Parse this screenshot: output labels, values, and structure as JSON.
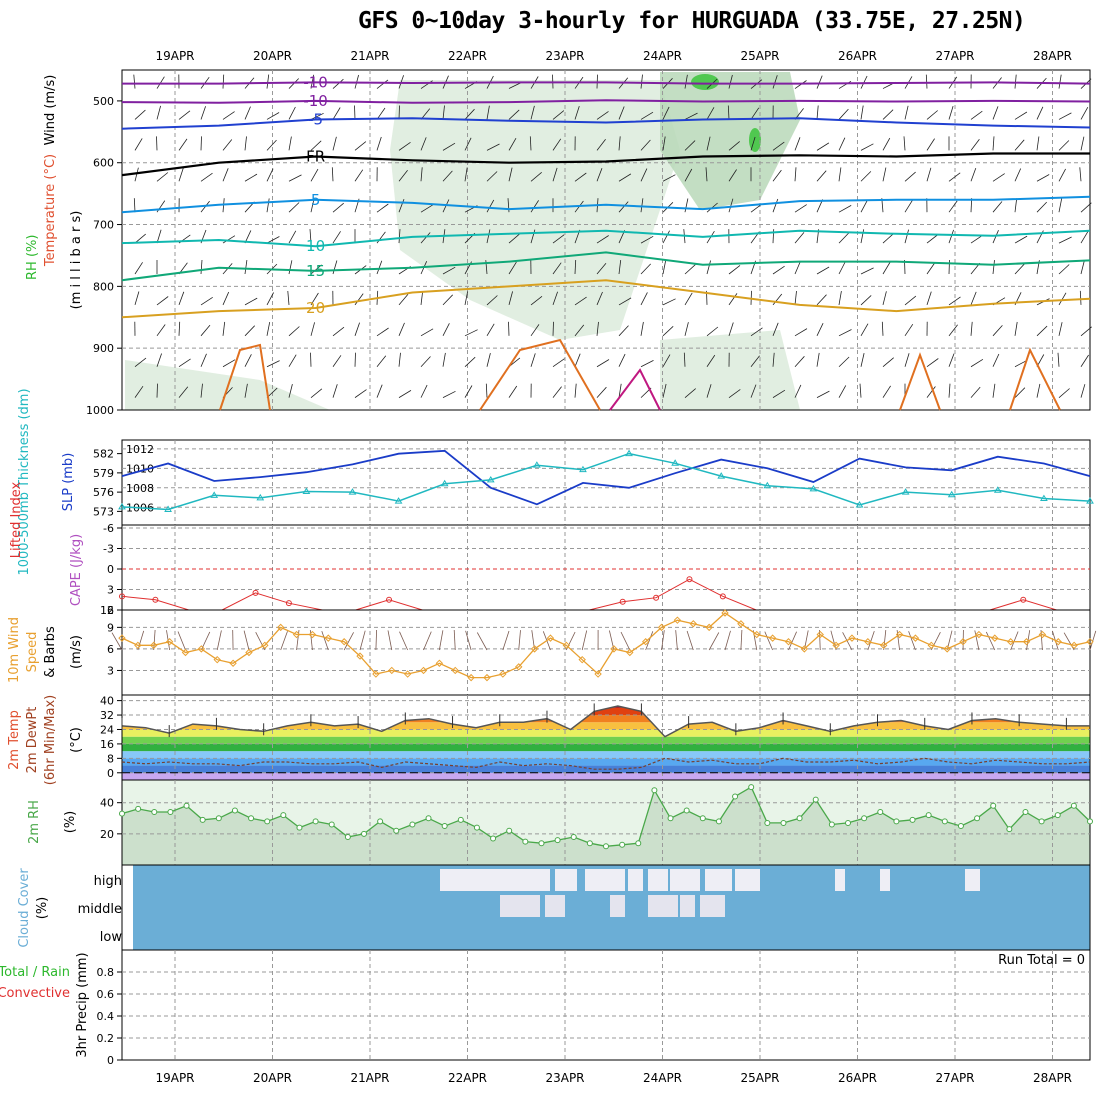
{
  "chart_data": {
    "type": "line",
    "title": "GFS 0~10day 3-hourly for HURGUADA (33.75E, 27.25N)",
    "dates": [
      "19APR",
      "20APR",
      "21APR",
      "22APR",
      "23APR",
      "24APR",
      "25APR",
      "26APR",
      "27APR",
      "28APR"
    ],
    "colors": {
      "rh": "#2db82d",
      "temp": "#e05030",
      "wind": "#222222",
      "slp": "#1a3cc8",
      "thickness": "#20b8c0",
      "cape": "#b050c0",
      "li": "#e03030",
      "wind10": "#e8a030",
      "clouds": "#6baed6",
      "cloud_fill": "#eeeef5",
      "rh2m": "#4aa84a"
    },
    "upper_air": {
      "ylabel_wind": "Wind (m/s)",
      "ylabel_temp": "Temperature (°C)",
      "ylabel_rh": "RH (%)",
      "ylabel_p": "(m i l l i b a r s)",
      "yticks": [
        500,
        600,
        700,
        800,
        900,
        1000
      ],
      "ylim": [
        450,
        1000
      ],
      "contours": [
        {
          "label": "-10",
          "color": "#8020a0",
          "p": [
            472,
            472,
            470,
            471,
            470,
            470,
            472,
            472,
            471,
            470,
            472
          ]
        },
        {
          "label": "-10",
          "color": "#8020a0",
          "p": [
            502,
            503,
            500,
            503,
            502,
            499,
            501,
            500,
            501,
            500,
            501
          ]
        },
        {
          "label": "-5",
          "color": "#2040d0",
          "p": [
            545,
            540,
            530,
            528,
            532,
            535,
            530,
            528,
            535,
            540,
            543
          ]
        },
        {
          "label": "FR",
          "color": "#000000",
          "p": [
            620,
            600,
            590,
            596,
            600,
            598,
            590,
            588,
            590,
            585,
            585
          ]
        },
        {
          "label": "5",
          "color": "#1090e0",
          "p": [
            680,
            668,
            660,
            665,
            675,
            668,
            675,
            662,
            660,
            660,
            655
          ]
        },
        {
          "label": "10",
          "color": "#10b8b0",
          "p": [
            730,
            725,
            735,
            720,
            715,
            710,
            720,
            710,
            715,
            718,
            710
          ]
        },
        {
          "label": "15",
          "color": "#10a878",
          "p": [
            790,
            770,
            775,
            770,
            760,
            745,
            765,
            760,
            760,
            765,
            758
          ]
        },
        {
          "label": "20",
          "color": "#d8a020",
          "p": [
            850,
            840,
            835,
            810,
            800,
            790,
            810,
            830,
            840,
            828,
            820
          ]
        }
      ],
      "rh_label": "RH (%)"
    },
    "slp_thickness": {
      "ylabel_thickness": "1000-500mb Thickness (dm)",
      "ylabel_slp": "SLP (mb)",
      "thickness_ticks": [
        573,
        576,
        579,
        582
      ],
      "slp_ticks": [
        1006,
        1008,
        1010,
        1012
      ],
      "slp": [
        1009.2,
        1010.5,
        1008.7,
        1009.1,
        1009.6,
        1010.4,
        1011.5,
        1011.8,
        1008.0,
        1006.3,
        1008.5,
        1008.0,
        1009.5,
        1010.9,
        1010.0,
        1008.6,
        1011.0,
        1010.1,
        1009.8,
        1011.2,
        1010.5,
        1009.2
      ],
      "thickness": [
        573.7,
        573.3,
        575.5,
        575.1,
        576.1,
        576.0,
        574.6,
        577.3,
        577.9,
        580.2,
        579.5,
        582.0,
        580.5,
        578.5,
        577.0,
        576.5,
        574.0,
        576.0,
        575.6,
        576.3,
        575.0,
        574.6
      ]
    },
    "cape_li": {
      "ylabel_li": "Lifted Index",
      "ylabel_cape": "CAPE (J/kg)",
      "li_ticks": [
        -6,
        -3,
        0,
        3,
        6
      ],
      "cape_ticks": [
        12
      ],
      "li": [
        4.0,
        4.5,
        6,
        6,
        3.5,
        5,
        6,
        6,
        4.5,
        6,
        6,
        6,
        6,
        6,
        6,
        4.8,
        4.2,
        1.5,
        4,
        6,
        6,
        6,
        6,
        6,
        6,
        6,
        6,
        4.5,
        6,
        6
      ],
      "zero_line": 0
    },
    "wind10m": {
      "ylabel": "10m Wind Speed & Barbs (m/s)",
      "ylabel_a": "10m Wind",
      "ylabel_b": "Speed",
      "ylabel_c": "& Barbs",
      "ylabel_unit": "(m/s)",
      "ticks": [
        3,
        6,
        9
      ],
      "speed": [
        7.5,
        6.5,
        6.5,
        7,
        5.5,
        6,
        4.5,
        4,
        5.5,
        6.5,
        9,
        8,
        8,
        7.5,
        7,
        5,
        2.5,
        3,
        2.5,
        3,
        4,
        3,
        2,
        2,
        2.5,
        3.5,
        6,
        7.5,
        6.5,
        4.5,
        2.5,
        6,
        5.5,
        7,
        9,
        10,
        9.5,
        9,
        11,
        9.5,
        8,
        7.5,
        7,
        6,
        8,
        6.5,
        7.5,
        7,
        6.5,
        8,
        7.5,
        6.5,
        6,
        7,
        8,
        7.5,
        7,
        7,
        8,
        7,
        6.5,
        7
      ]
    },
    "temp2m": {
      "ylabel": "2m Temp",
      "ylabel_b": "2m DewPt",
      "ylabel_c": "(6hr Min/Max)",
      "ylabel_unit": "(°C)",
      "ticks": [
        0,
        8,
        16,
        24,
        32,
        40
      ],
      "temp": [
        26,
        25,
        22,
        27,
        26,
        24,
        23,
        26,
        28,
        26,
        27,
        23,
        29,
        30,
        27,
        25,
        28,
        28,
        30,
        24,
        34,
        37,
        34,
        20,
        27,
        28,
        23,
        25,
        29,
        26,
        23,
        26,
        28,
        29,
        26,
        24,
        29,
        30,
        28,
        27,
        26,
        26
      ],
      "dewpt": [
        6,
        5,
        6,
        5,
        5,
        4,
        6,
        6,
        5,
        5,
        6,
        3,
        6,
        5,
        4,
        3,
        6,
        4,
        5,
        4,
        2,
        2,
        3,
        8,
        6,
        7,
        5,
        5,
        8,
        6,
        6,
        7,
        5,
        6,
        8,
        6,
        5,
        7,
        6,
        5,
        5,
        6
      ]
    },
    "rh2m": {
      "ylabel": "2m RH",
      "ylabel_unit": "(%)",
      "ticks": [
        20,
        40
      ],
      "rh": [
        33,
        36,
        34,
        34,
        38,
        29,
        30,
        35,
        30,
        28,
        32,
        24,
        28,
        26,
        18,
        20,
        28,
        22,
        26,
        30,
        25,
        29,
        24,
        17,
        22,
        15,
        14,
        16,
        18,
        14,
        12,
        13,
        14,
        48,
        30,
        35,
        30,
        28,
        44,
        50,
        27,
        27,
        30,
        42,
        26,
        27,
        30,
        34,
        28,
        29,
        32,
        28,
        25,
        30,
        38,
        23,
        34,
        28,
        32,
        38,
        28
      ]
    },
    "clouds": {
      "ylabel": "Cloud Cover",
      "ylabel_unit": "(%)",
      "levels": [
        "high",
        "middle",
        "low"
      ]
    },
    "precip": {
      "ylabel": "3hr Precip (mm)",
      "ylabel_total": "Total / Rain",
      "ylabel_conv": "Convective",
      "ticks": [
        0,
        0.2,
        0.4,
        0.6,
        0.8
      ],
      "run_total": "Run Total = 0",
      "values": []
    }
  }
}
